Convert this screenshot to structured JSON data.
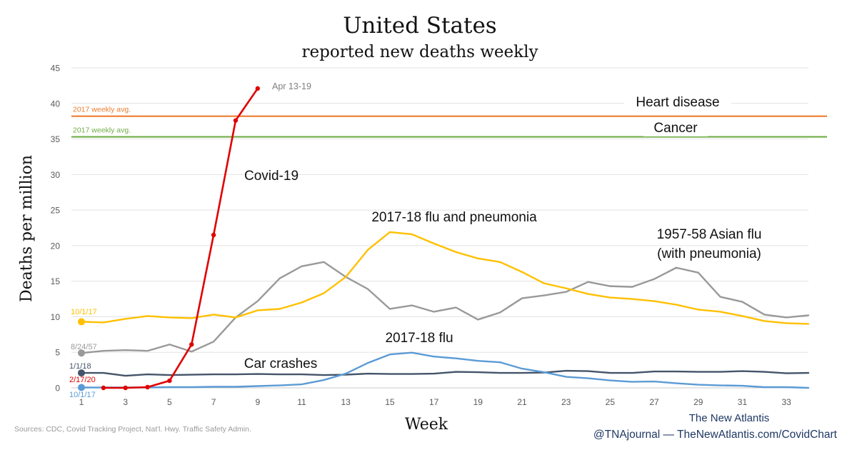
{
  "chart_data": {
    "type": "line",
    "title": "United States",
    "subtitle": "reported new deaths weekly",
    "xlabel": "Week",
    "ylabel": "Deaths per million",
    "xlim": [
      1,
      34
    ],
    "ylim": [
      0,
      45
    ],
    "x_ticks": [
      1,
      3,
      5,
      7,
      9,
      11,
      13,
      15,
      17,
      19,
      21,
      23,
      25,
      27,
      29,
      31,
      33
    ],
    "y_ticks": [
      0,
      5,
      10,
      15,
      20,
      25,
      30,
      35,
      40,
      45
    ],
    "grid": "horizontal",
    "reference_lines": [
      {
        "label": "Heart disease",
        "note": "2017 weekly avg.",
        "value": 38.2,
        "color": "#ED7D31"
      },
      {
        "label": "Cancer",
        "note": "2017 weekly avg.",
        "value": 35.3,
        "color": "#70AD47"
      }
    ],
    "series": [
      {
        "name": "Covid-19",
        "color": "#E00000",
        "start_label": "2/17/20",
        "end_label": "Apr 13-19",
        "x": [
          2,
          3,
          4,
          5,
          6,
          7,
          8,
          9
        ],
        "values": [
          0,
          0,
          0.1,
          1.0,
          6.1,
          21.5,
          37.6,
          42.1
        ]
      },
      {
        "name": "2017-18 flu and pneumonia",
        "color": "#FFC000",
        "start_label": "10/1/17",
        "x": [
          1,
          2,
          3,
          4,
          5,
          6,
          7,
          8,
          9,
          10,
          11,
          12,
          13,
          14,
          15,
          16,
          17,
          18,
          19,
          20,
          21,
          22,
          23,
          24,
          25,
          26,
          27,
          28,
          29,
          30,
          31,
          32,
          33,
          34
        ],
        "values": [
          9.3,
          9.2,
          9.7,
          10.1,
          9.9,
          9.8,
          10.3,
          9.9,
          10.9,
          11.1,
          12.0,
          13.3,
          15.6,
          19.4,
          21.9,
          21.6,
          20.3,
          19.1,
          18.2,
          17.7,
          16.3,
          14.7,
          14.0,
          13.2,
          12.7,
          12.5,
          12.2,
          11.7,
          11.0,
          10.7,
          10.1,
          9.4,
          9.1,
          9.0
        ]
      },
      {
        "name": "1957-58 Asian flu (with pneumonia)",
        "color": "#999999",
        "start_label": "8/24/57",
        "x": [
          1,
          2,
          3,
          4,
          5,
          6,
          7,
          8,
          9,
          10,
          11,
          12,
          13,
          14,
          15,
          16,
          17,
          18,
          19,
          20,
          21,
          22,
          23,
          24,
          25,
          26,
          27,
          28,
          29,
          30,
          31,
          32,
          33,
          34
        ],
        "values": [
          4.9,
          5.2,
          5.3,
          5.2,
          6.1,
          5.1,
          6.5,
          9.9,
          12.2,
          15.4,
          17.1,
          17.7,
          15.6,
          13.9,
          11.1,
          11.6,
          10.7,
          11.3,
          9.6,
          10.6,
          12.6,
          13.0,
          13.5,
          14.9,
          14.3,
          14.2,
          15.3,
          16.9,
          16.2,
          12.8,
          12.1,
          10.3,
          9.9,
          10.2
        ]
      },
      {
        "name": "2017-18 flu",
        "color": "#5B9BD5",
        "start_label": "10/1/17",
        "x": [
          1,
          2,
          3,
          4,
          5,
          6,
          7,
          8,
          9,
          10,
          11,
          12,
          13,
          14,
          15,
          16,
          17,
          18,
          19,
          20,
          21,
          22,
          23,
          24,
          25,
          26,
          27,
          28,
          29,
          30,
          31,
          32,
          33,
          34
        ],
        "values": [
          0.05,
          0.05,
          0.05,
          0.05,
          0.1,
          0.1,
          0.15,
          0.15,
          0.25,
          0.35,
          0.5,
          1.1,
          2.0,
          3.5,
          4.7,
          4.95,
          4.4,
          4.15,
          3.8,
          3.6,
          2.7,
          2.2,
          1.55,
          1.35,
          1.05,
          0.85,
          0.9,
          0.65,
          0.45,
          0.35,
          0.3,
          0.1,
          0.1,
          0.0
        ]
      },
      {
        "name": "Car crashes",
        "color": "#44546A",
        "start_label": "1/1/18",
        "x": [
          1,
          2,
          3,
          4,
          5,
          6,
          7,
          8,
          9,
          10,
          11,
          12,
          13,
          14,
          15,
          16,
          17,
          18,
          19,
          20,
          21,
          22,
          23,
          24,
          25,
          26,
          27,
          28,
          29,
          30,
          31,
          32,
          33,
          34
        ],
        "values": [
          2.1,
          2.1,
          1.7,
          1.9,
          1.8,
          1.85,
          1.9,
          1.9,
          1.95,
          1.9,
          1.9,
          1.8,
          1.85,
          2.0,
          1.95,
          1.95,
          2.0,
          2.25,
          2.2,
          2.1,
          2.1,
          2.15,
          2.4,
          2.35,
          2.1,
          2.1,
          2.3,
          2.3,
          2.25,
          2.25,
          2.35,
          2.25,
          2.05,
          2.1
        ]
      }
    ]
  },
  "footer": {
    "sources": "Sources: CDC, Covid Tracking Project, Nat'l. Hwy. Traffic Safety Admin.",
    "brand": "The New Atlantis",
    "credit": "@TNAjournal — TheNewAtlantis.com/CovidChart"
  }
}
